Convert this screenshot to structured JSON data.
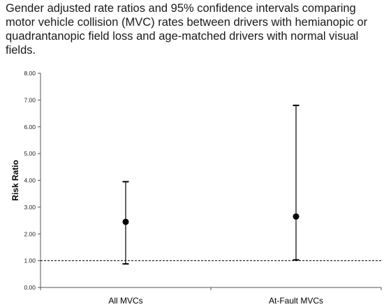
{
  "title": "Gender adjusted rate ratios and 95% confidence intervals comparing motor vehicle collision (MVC) rates between drivers with hemianopic or quadrantanopic field loss and age-matched drivers with normal visual fields.",
  "chart_data": {
    "type": "scatter",
    "title": "Gender adjusted rate ratios and 95% confidence intervals comparing motor vehicle collision (MVC) rates between drivers with hemianopic or quadrantanopic field loss and age-matched drivers with normal visual fields.",
    "xlabel": "",
    "ylabel": "Risk Ratio",
    "ylim": [
      0,
      8
    ],
    "y_ticks": [
      0,
      1,
      2,
      3,
      4,
      5,
      6,
      7,
      8
    ],
    "y_tick_labels": [
      "0.00",
      "1.00",
      "2.00",
      "3.00",
      "4.00",
      "5.00",
      "6.00",
      "7.00",
      "8.00"
    ],
    "categories": [
      "All MVCs",
      "At-Fault MVCs"
    ],
    "values": [
      2.45,
      2.65
    ],
    "ci_lower": [
      0.88,
      1.03
    ],
    "ci_upper": [
      3.95,
      6.8
    ],
    "reference_line": 1.0,
    "grid": false,
    "point_color": "#000000"
  }
}
